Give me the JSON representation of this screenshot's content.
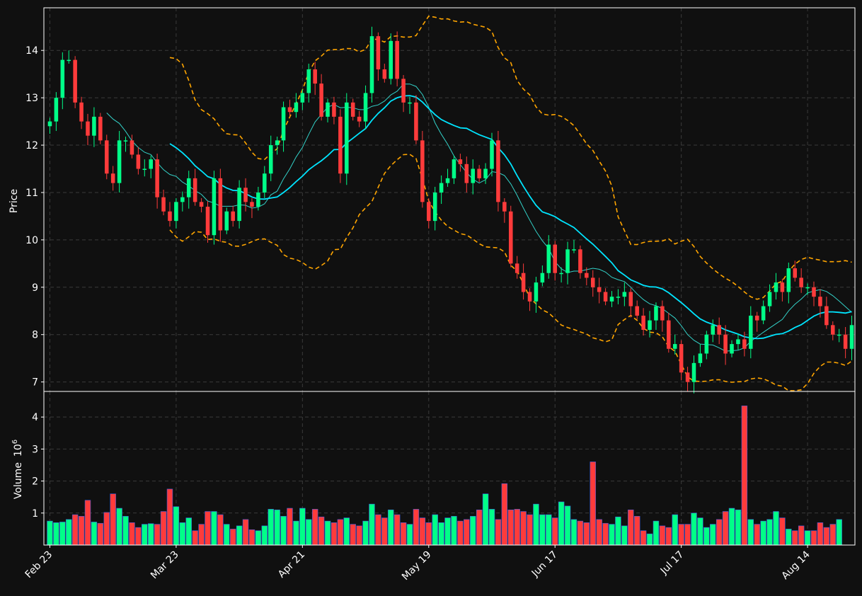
{
  "chart_data": {
    "type": "candlestick",
    "title": "",
    "ylabel_price": "Price",
    "ylabel_volume": "Volume",
    "volume_multiplier": "10",
    "volume_exponent": "6",
    "price_ylim": [
      6.8,
      14.9
    ],
    "price_yticks": [
      "7",
      "8",
      "9",
      "10",
      "11",
      "12",
      "13",
      "14"
    ],
    "volume_ylim": [
      0,
      4.8
    ],
    "volume_yticks": [
      "1",
      "2",
      "3",
      "4"
    ],
    "xtick_labels": [
      {
        "label": "Feb 23",
        "index": 0
      },
      {
        "label": "Mar 23",
        "index": 20
      },
      {
        "label": "Apr 21",
        "index": 40
      },
      {
        "label": "May 19",
        "index": 60
      },
      {
        "label": "Jun 17",
        "index": 80
      },
      {
        "label": "Jul 17",
        "index": 100
      },
      {
        "label": "Aug 14",
        "index": 120
      }
    ],
    "grid": true,
    "up_color": "#00ff88",
    "down_color": "#ff3b3b",
    "ma_fast_color": "#00e5ff",
    "ma_slow_color": "#33d1c8",
    "band_color": "#ffa500",
    "ohlc_close": [
      12.5,
      13.0,
      13.8,
      13.8,
      12.9,
      12.5,
      12.2,
      12.6,
      12.1,
      11.4,
      11.2,
      12.1,
      12.1,
      11.8,
      11.5,
      11.5,
      11.7,
      10.9,
      10.6,
      10.4,
      10.8,
      10.9,
      11.3,
      10.8,
      10.7,
      10.1,
      11.3,
      10.2,
      10.6,
      10.4,
      11.1,
      10.8,
      10.7,
      11.0,
      11.4,
      12.0,
      12.1,
      12.8,
      12.7,
      12.9,
      13.1,
      13.6,
      13.3,
      12.6,
      12.9,
      12.6,
      11.4,
      12.9,
      12.6,
      12.5,
      13.1,
      14.3,
      13.6,
      13.4,
      14.2,
      13.4,
      12.9,
      12.9,
      12.1,
      10.8,
      10.4,
      11.0,
      11.2,
      11.3,
      11.7,
      11.6,
      11.2,
      11.5,
      11.3,
      11.5,
      12.1,
      10.8,
      10.6,
      9.5,
      9.3,
      8.9,
      8.7,
      9.1,
      9.3,
      9.9,
      9.3,
      9.3,
      9.8,
      9.8,
      9.3,
      9.2,
      9.0,
      8.9,
      8.7,
      8.8,
      8.8,
      8.9,
      8.6,
      8.4,
      8.1,
      8.3,
      8.6,
      8.3,
      7.7,
      7.8,
      7.2,
      7.0,
      7.4,
      7.6,
      8.0,
      8.2,
      8.0,
      7.6,
      7.8,
      7.9,
      7.7,
      8.4,
      8.3,
      8.6,
      8.9,
      9.1,
      8.9,
      9.4,
      9.2,
      9.0,
      9.0,
      8.8,
      8.6,
      8.2,
      8.0,
      8.0,
      7.7,
      8.2
    ],
    "volume": [
      0.75,
      0.7,
      0.72,
      0.8,
      0.95,
      0.9,
      1.4,
      0.72,
      0.68,
      1.02,
      1.6,
      1.15,
      0.9,
      0.7,
      0.55,
      0.65,
      0.67,
      0.65,
      1.05,
      1.75,
      1.2,
      0.7,
      0.85,
      0.45,
      0.65,
      1.05,
      1.05,
      0.95,
      0.65,
      0.5,
      0.6,
      0.8,
      0.48,
      0.45,
      0.6,
      1.12,
      1.1,
      0.9,
      1.15,
      0.75,
      1.15,
      0.8,
      1.12,
      0.88,
      0.75,
      0.7,
      0.8,
      0.85,
      0.65,
      0.6,
      0.75,
      1.28,
      0.95,
      0.85,
      1.1,
      0.95,
      0.7,
      0.65,
      1.12,
      0.85,
      0.7,
      0.95,
      0.7,
      0.85,
      0.9,
      0.75,
      0.8,
      0.9,
      1.1,
      1.6,
      1.12,
      0.8,
      1.92,
      1.1,
      1.12,
      1.05,
      0.95,
      1.28,
      0.95,
      0.95,
      0.85,
      1.35,
      1.22,
      0.8,
      0.75,
      0.7,
      2.6,
      0.8,
      0.68,
      0.65,
      0.88,
      0.6,
      1.1,
      0.9,
      0.45,
      0.35,
      0.75,
      0.6,
      0.55,
      0.95,
      0.65,
      0.65,
      1.0,
      0.85,
      0.55,
      0.65,
      0.8,
      1.05,
      1.15,
      1.1,
      4.35,
      0.8,
      0.65,
      0.75,
      0.8,
      1.05,
      0.85,
      0.5,
      0.45,
      0.6,
      0.45,
      0.45,
      0.7,
      0.55,
      0.65,
      0.8
    ]
  }
}
